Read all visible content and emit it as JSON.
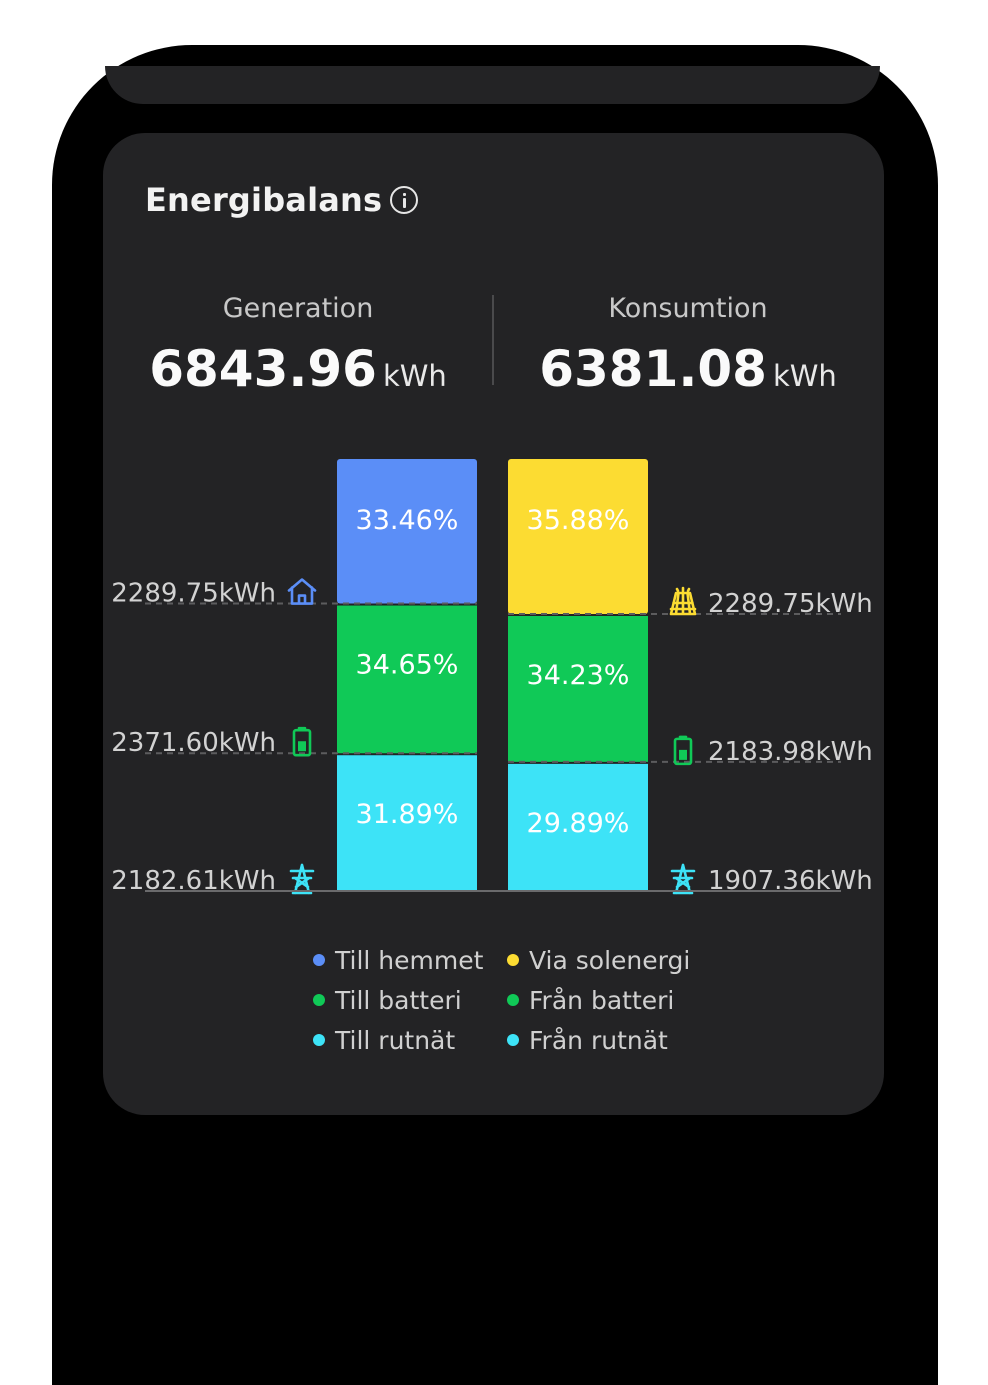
{
  "title": "Energibalans",
  "icons": {
    "info": "info-icon",
    "home": "home-icon",
    "battery": "battery-icon",
    "grid": "power-tower-icon",
    "solar": "solar-panel-icon"
  },
  "summary": {
    "generation": {
      "label": "Generation",
      "value": "6843.96",
      "unit": "kWh"
    },
    "consumption": {
      "label": "Konsumtion",
      "value": "6381.08",
      "unit": "kWh"
    }
  },
  "colors": {
    "blue": "#5b8ef7",
    "green": "#10c957",
    "cyan": "#3de3f7",
    "yellow": "#fcdc32"
  },
  "chart_data": {
    "type": "bar",
    "stacked": true,
    "categories": [
      "Generation",
      "Konsumtion"
    ],
    "series": [
      {
        "bar": "Generation",
        "segments": [
          {
            "name": "Till hemmet",
            "percent": 33.46,
            "percent_label": "33.46%",
            "kwh_label": "2289.75kWh",
            "icon": "home-icon",
            "color": "#5b8ef7"
          },
          {
            "name": "Till batteri",
            "percent": 34.65,
            "percent_label": "34.65%",
            "kwh_label": "2371.60kWh",
            "icon": "battery-icon",
            "color": "#10c957"
          },
          {
            "name": "Till rutnät",
            "percent": 31.89,
            "percent_label": "31.89%",
            "kwh_label": "2182.61kWh",
            "icon": "power-tower-icon",
            "color": "#3de3f7"
          }
        ]
      },
      {
        "bar": "Konsumtion",
        "segments": [
          {
            "name": "Via solenergi",
            "percent": 35.88,
            "percent_label": "35.88%",
            "kwh_label": "2289.75kWh",
            "icon": "solar-panel-icon",
            "color": "#fcdc32"
          },
          {
            "name": "Från batteri",
            "percent": 34.23,
            "percent_label": "34.23%",
            "kwh_label": "2183.98kWh",
            "icon": "battery-icon",
            "color": "#10c957"
          },
          {
            "name": "Från rutnät",
            "percent": 29.89,
            "percent_label": "29.89%",
            "kwh_label": "1907.36kWh",
            "icon": "power-tower-icon",
            "color": "#3de3f7"
          }
        ]
      }
    ],
    "legend": [
      {
        "label": "Till hemmet",
        "color": "#5b8ef7"
      },
      {
        "label": "Via solenergi",
        "color": "#fcdc32"
      },
      {
        "label": "Till batteri",
        "color": "#10c957"
      },
      {
        "label": "Från batteri",
        "color": "#10c957"
      },
      {
        "label": "Till rutnät",
        "color": "#3de3f7"
      },
      {
        "label": "Från rutnät",
        "color": "#3de3f7"
      }
    ],
    "legend_position": "bottom"
  }
}
